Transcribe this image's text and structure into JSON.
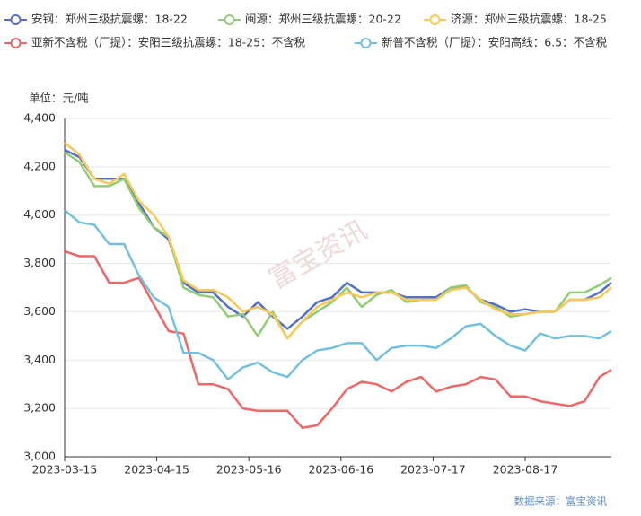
{
  "chart_data": {
    "type": "line",
    "unit_label": "单位：元/吨",
    "source": "数据来源：富宝资讯",
    "watermark": "富宝资讯",
    "x": [
      "2023-03-15",
      "2023-03-20",
      "2023-03-25",
      "2023-03-30",
      "2023-04-04",
      "2023-04-09",
      "2023-04-14",
      "2023-04-19",
      "2023-04-24",
      "2023-04-29",
      "2023-05-04",
      "2023-05-09",
      "2023-05-14",
      "2023-05-19",
      "2023-05-24",
      "2023-05-29",
      "2023-06-03",
      "2023-06-08",
      "2023-06-13",
      "2023-06-18",
      "2023-06-23",
      "2023-06-28",
      "2023-07-03",
      "2023-07-08",
      "2023-07-13",
      "2023-07-18",
      "2023-07-23",
      "2023-07-28",
      "2023-08-02",
      "2023-08-07",
      "2023-08-12",
      "2023-08-17",
      "2023-08-22",
      "2023-08-27",
      "2023-09-01",
      "2023-09-06",
      "2023-09-11",
      "2023-09-15"
    ],
    "xlim": [
      "2023-03-15",
      "2023-09-15"
    ],
    "xticks": [
      "2023-03-15",
      "2023-04-15",
      "2023-05-16",
      "2023-06-16",
      "2023-07-17",
      "2023-08-17"
    ],
    "ylim": [
      3000,
      4400
    ],
    "yticks": [
      {
        "value": 3000,
        "label": "3,000"
      },
      {
        "value": 3200,
        "label": "3,200"
      },
      {
        "value": 3400,
        "label": "3,400"
      },
      {
        "value": 3600,
        "label": "3,600"
      },
      {
        "value": 3800,
        "label": "3,800"
      },
      {
        "value": 4000,
        "label": "4,000"
      },
      {
        "value": 4200,
        "label": "4,200"
      },
      {
        "value": 4400,
        "label": "4,400"
      }
    ],
    "grid": true,
    "series": [
      {
        "name": "安钢：郑州三级抗震螺：18-22",
        "color": "#5470c6",
        "values": [
          4270,
          4240,
          4150,
          4150,
          4150,
          4050,
          3950,
          3900,
          3720,
          3680,
          3680,
          3620,
          3580,
          3640,
          3580,
          3530,
          3580,
          3640,
          3660,
          3720,
          3680,
          3680,
          3680,
          3660,
          3660,
          3660,
          3700,
          3700,
          3650,
          3630,
          3600,
          3610,
          3600,
          3600,
          3650,
          3650,
          3680,
          3720
        ]
      },
      {
        "name": "闽源：郑州三级抗震螺：20-22",
        "color": "#91cc75",
        "values": [
          4260,
          4220,
          4120,
          4120,
          4150,
          4030,
          3950,
          3910,
          3700,
          3670,
          3660,
          3580,
          3590,
          3500,
          3600,
          3490,
          3560,
          3600,
          3640,
          3700,
          3620,
          3670,
          3690,
          3640,
          3650,
          3650,
          3700,
          3710,
          3640,
          3620,
          3580,
          3590,
          3600,
          3600,
          3680,
          3680,
          3710,
          3740
        ]
      },
      {
        "name": "济源：郑州三级抗震螺：18-25",
        "color": "#fac858",
        "values": [
          4300,
          4250,
          4150,
          4130,
          4170,
          4060,
          4000,
          3910,
          3730,
          3690,
          3690,
          3660,
          3600,
          3620,
          3590,
          3490,
          3560,
          3620,
          3650,
          3680,
          3660,
          3680,
          3680,
          3650,
          3650,
          3650,
          3690,
          3700,
          3650,
          3610,
          3590,
          3590,
          3600,
          3600,
          3650,
          3650,
          3660,
          3700
        ]
      },
      {
        "name": "亚新不含税（厂提）：安阳三级抗震螺：18-25：不含税",
        "color": "#ee6666",
        "values": [
          3850,
          3830,
          3830,
          3720,
          3720,
          3740,
          3630,
          3520,
          3510,
          3300,
          3300,
          3280,
          3200,
          3190,
          3190,
          3190,
          3120,
          3130,
          3200,
          3280,
          3310,
          3300,
          3270,
          3310,
          3330,
          3270,
          3290,
          3300,
          3330,
          3320,
          3250,
          3250,
          3230,
          3220,
          3210,
          3230,
          3330,
          3360
        ]
      },
      {
        "name": "新普不含税（厂提）：安阳高线：6.5：不含税",
        "color": "#73c0de",
        "values": [
          4020,
          3970,
          3960,
          3880,
          3880,
          3750,
          3660,
          3620,
          3430,
          3430,
          3400,
          3320,
          3370,
          3390,
          3350,
          3330,
          3400,
          3440,
          3450,
          3470,
          3470,
          3400,
          3450,
          3460,
          3460,
          3450,
          3490,
          3540,
          3550,
          3500,
          3460,
          3440,
          3510,
          3490,
          3500,
          3500,
          3490,
          3520
        ]
      }
    ]
  }
}
